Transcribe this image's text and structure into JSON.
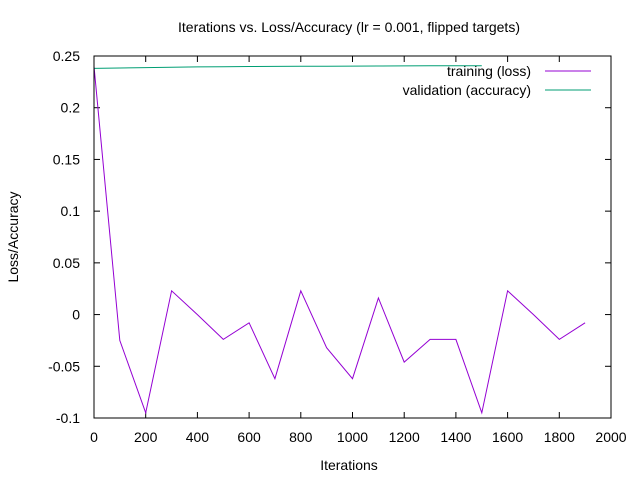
{
  "chart_data": {
    "type": "line",
    "title": "Iterations vs. Loss/Accuracy (lr = 0.001, flipped targets)",
    "xlabel": "Iterations",
    "ylabel": "Loss/Accuracy",
    "xlim": [
      0,
      2000
    ],
    "ylim": [
      -0.1,
      0.25
    ],
    "x_ticks": [
      0,
      200,
      400,
      600,
      800,
      1000,
      1200,
      1400,
      1600,
      1800,
      2000
    ],
    "x_tick_labels": [
      "0",
      "200",
      "400",
      "600",
      "800",
      "1000",
      "1200",
      "1400",
      "1600",
      "1800",
      "2000"
    ],
    "y_ticks": [
      -0.1,
      -0.05,
      0,
      0.05,
      0.1,
      0.15,
      0.2,
      0.25
    ],
    "y_tick_labels": [
      "-0.1",
      "-0.05",
      "0",
      "0.05",
      "0.1",
      "0.15",
      "0.2",
      "0.25"
    ],
    "grid": false,
    "legend_position": "top-right",
    "series": [
      {
        "name": "training (loss)",
        "color": "#9400d3",
        "x": [
          0,
          100,
          200,
          300,
          400,
          500,
          600,
          700,
          800,
          900,
          1000,
          1100,
          1200,
          1300,
          1400,
          1500,
          1600,
          1700,
          1800,
          1900
        ],
        "y": [
          0.24,
          -0.025,
          -0.095,
          0.023,
          0.0,
          -0.024,
          -0.008,
          -0.062,
          0.023,
          -0.032,
          -0.062,
          0.016,
          -0.046,
          -0.024,
          -0.024,
          -0.095,
          0.023,
          0.0,
          -0.024,
          -0.008
        ]
      },
      {
        "name": "validation (accuracy)",
        "color": "#009e73",
        "x": [
          0,
          100,
          200,
          300,
          400,
          500,
          600,
          700,
          800,
          900,
          1000,
          1100,
          1200,
          1300,
          1400,
          1500
        ],
        "y": [
          0.238,
          0.2384,
          0.2388,
          0.2392,
          0.2395,
          0.2397,
          0.2398,
          0.2399,
          0.24,
          0.2401,
          0.2402,
          0.2403,
          0.2404,
          0.2405,
          0.2405,
          0.2406
        ]
      }
    ]
  }
}
